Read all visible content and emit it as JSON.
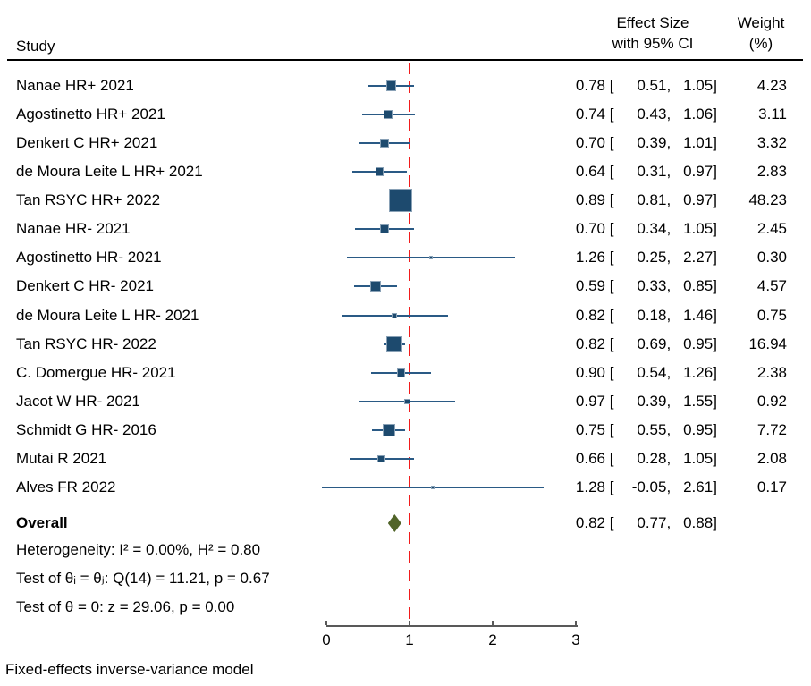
{
  "header": {
    "study": "Study",
    "effect_line1": "Effect Size",
    "effect_line2": "with 95% CI",
    "weight_line1": "Weight",
    "weight_line2": "(%)"
  },
  "chart_data": {
    "type": "forest",
    "x_axis": {
      "min": 0,
      "max": 3,
      "ticks": [
        "0",
        "1",
        "2",
        "3"
      ],
      "reference_line": 1
    },
    "studies": [
      {
        "name": "Nanae HR+ 2021",
        "effect": "0.78",
        "ci_low": "0.51",
        "ci_high": "1.05",
        "weight": "4.23"
      },
      {
        "name": "Agostinetto HR+ 2021",
        "effect": "0.74",
        "ci_low": "0.43",
        "ci_high": "1.06",
        "weight": "3.11"
      },
      {
        "name": "Denkert C HR+ 2021",
        "effect": "0.70",
        "ci_low": "0.39",
        "ci_high": "1.01",
        "weight": "3.32"
      },
      {
        "name": "de Moura Leite L HR+ 2021",
        "effect": "0.64",
        "ci_low": "0.31",
        "ci_high": "0.97",
        "weight": "2.83"
      },
      {
        "name": "Tan RSYC HR+ 2022",
        "effect": "0.89",
        "ci_low": "0.81",
        "ci_high": "0.97",
        "weight": "48.23"
      },
      {
        "name": "Nanae HR- 2021",
        "effect": "0.70",
        "ci_low": "0.34",
        "ci_high": "1.05",
        "weight": "2.45"
      },
      {
        "name": "Agostinetto HR- 2021",
        "effect": "1.26",
        "ci_low": "0.25",
        "ci_high": "2.27",
        "weight": "0.30"
      },
      {
        "name": "Denkert C HR- 2021",
        "effect": "0.59",
        "ci_low": "0.33",
        "ci_high": "0.85",
        "weight": "4.57"
      },
      {
        "name": "de Moura Leite L HR- 2021",
        "effect": "0.82",
        "ci_low": "0.18",
        "ci_high": "1.46",
        "weight": "0.75"
      },
      {
        "name": "Tan RSYC HR- 2022",
        "effect": "0.82",
        "ci_low": "0.69",
        "ci_high": "0.95",
        "weight": "16.94"
      },
      {
        "name": "C. Domergue HR- 2021",
        "effect": "0.90",
        "ci_low": "0.54",
        "ci_high": "1.26",
        "weight": "2.38"
      },
      {
        "name": "Jacot W HR- 2021",
        "effect": "0.97",
        "ci_low": "0.39",
        "ci_high": "1.55",
        "weight": "0.92"
      },
      {
        "name": "Schmidt G HR- 2016",
        "effect": "0.75",
        "ci_low": "0.55",
        "ci_high": "0.95",
        "weight": "7.72"
      },
      {
        "name": "Mutai R 2021",
        "effect": "0.66",
        "ci_low": "0.28",
        "ci_high": "1.05",
        "weight": "2.08"
      },
      {
        "name": "Alves FR 2022",
        "effect": "1.28",
        "ci_low": "-0.05",
        "ci_high": "2.61",
        "weight": "0.17"
      }
    ],
    "overall": {
      "label": "Overall",
      "effect": "0.82",
      "ci_low": "0.77",
      "ci_high": "0.88"
    },
    "stats_lines": [
      "Heterogeneity: I² = 0.00%, H² = 0.80",
      "Test of θᵢ = θⱼ: Q(14) = 11.21, p = 0.67",
      "Test of θ = 0: z = 29.06, p = 0.00"
    ],
    "model_note": "Fixed-effects inverse-variance model"
  },
  "colors": {
    "marker_fill": "#1d4a6e",
    "marker_border": "#89a1b6",
    "ci_line": "#2a5a85",
    "reference_line": "#f21b1b",
    "diamond_fill": "#516429",
    "axis": "#595959",
    "text": "#000000"
  }
}
